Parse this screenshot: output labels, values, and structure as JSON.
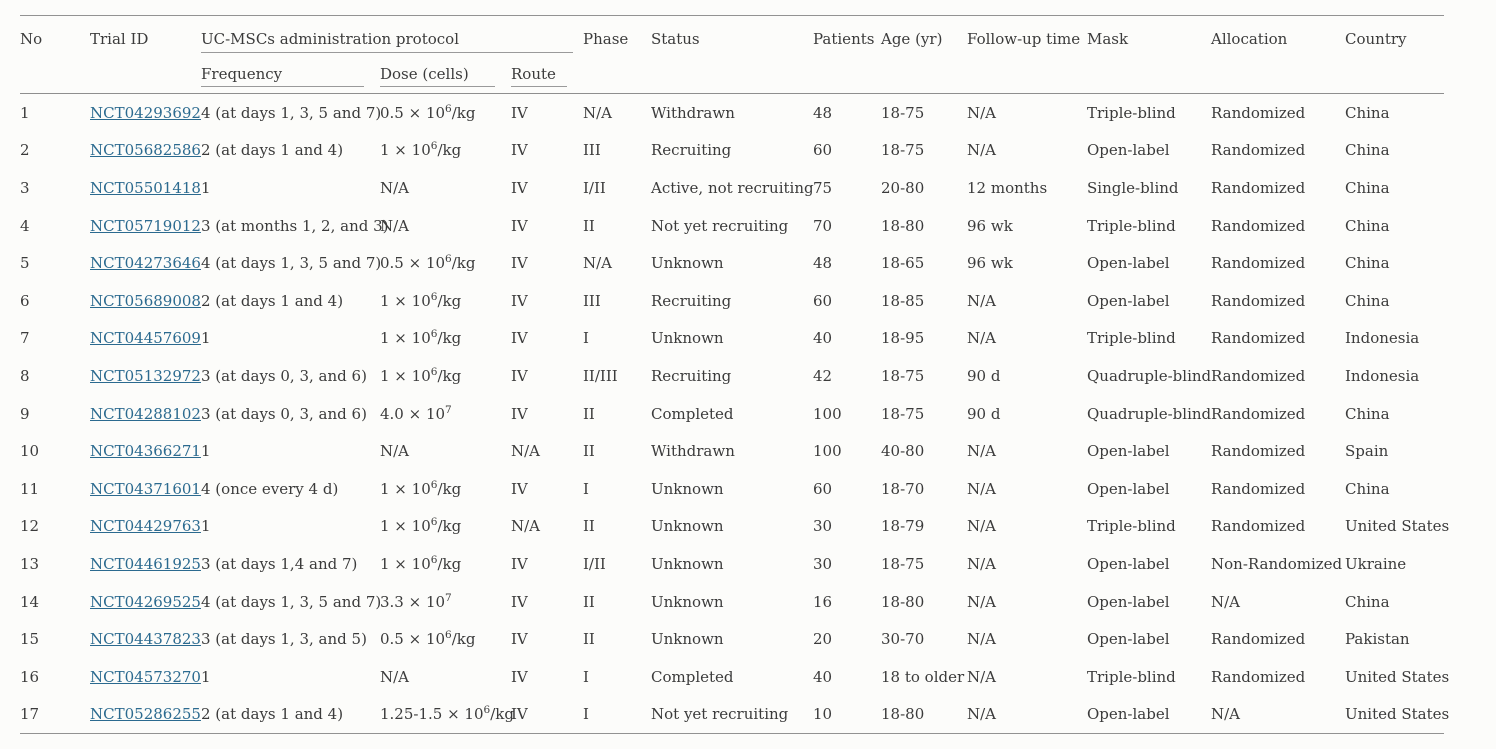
{
  "table": {
    "headers": {
      "no": "No",
      "trial_id": "Trial ID",
      "protocol_group": "UC-MSCs administration protocol",
      "frequency": "Frequency",
      "dose": "Dose (cells)",
      "route": "Route",
      "phase": "Phase",
      "status": "Status",
      "patients": "Patients",
      "age": "Age (yr)",
      "follow_up": "Follow-up time",
      "mask": "Mask",
      "allocation": "Allocation",
      "country": "Country"
    },
    "link_color": "#2b6a8f",
    "rows": [
      {
        "no": "1",
        "trial_id": "NCT04293692",
        "frequency": "4 (at days 1, 3, 5 and 7)",
        "dose": {
          "pre": "0.5 × 10",
          "exp": "6",
          "post": "/kg"
        },
        "route": "IV",
        "phase": "N/A",
        "status": "Withdrawn",
        "patients": "48",
        "age": "18-75",
        "follow_up": "N/A",
        "mask": "Triple-blind",
        "allocation": "Randomized",
        "country": "China"
      },
      {
        "no": "2",
        "trial_id": "NCT05682586",
        "frequency": "2 (at days 1 and 4)",
        "dose": {
          "pre": "1 × 10",
          "exp": "6",
          "post": "/kg"
        },
        "route": "IV",
        "phase": "III",
        "status": "Recruiting",
        "patients": "60",
        "age": "18-75",
        "follow_up": "N/A",
        "mask": "Open-label",
        "allocation": "Randomized",
        "country": "China"
      },
      {
        "no": "3",
        "trial_id": "NCT05501418",
        "frequency": "1",
        "dose": {
          "pre": "N/A",
          "exp": "",
          "post": ""
        },
        "route": "IV",
        "phase": "I/II",
        "status": "Active, not recruiting",
        "patients": "75",
        "age": "20-80",
        "follow_up": "12 months",
        "mask": "Single-blind",
        "allocation": "Randomized",
        "country": "China"
      },
      {
        "no": "4",
        "trial_id": "NCT05719012",
        "frequency": "3 (at months 1, 2, and 3)",
        "dose": {
          "pre": "N/A",
          "exp": "",
          "post": ""
        },
        "route": "IV",
        "phase": "II",
        "status": "Not yet recruiting",
        "patients": "70",
        "age": "18-80",
        "follow_up": "96 wk",
        "mask": "Triple-blind",
        "allocation": "Randomized",
        "country": "China"
      },
      {
        "no": "5",
        "trial_id": "NCT04273646",
        "frequency": "4 (at days 1, 3, 5 and 7)",
        "dose": {
          "pre": "0.5 × 10",
          "exp": "6",
          "post": "/kg"
        },
        "route": "IV",
        "phase": "N/A",
        "status": "Unknown",
        "patients": "48",
        "age": "18-65",
        "follow_up": "96 wk",
        "mask": "Open-label",
        "allocation": "Randomized",
        "country": "China"
      },
      {
        "no": "6",
        "trial_id": "NCT05689008",
        "frequency": "2 (at days 1 and 4)",
        "dose": {
          "pre": "1 × 10",
          "exp": "6",
          "post": "/kg"
        },
        "route": "IV",
        "phase": "III",
        "status": "Recruiting",
        "patients": "60",
        "age": "18-85",
        "follow_up": "N/A",
        "mask": "Open-label",
        "allocation": "Randomized",
        "country": "China"
      },
      {
        "no": "7",
        "trial_id": "NCT04457609",
        "frequency": "1",
        "dose": {
          "pre": "1 × 10",
          "exp": "6",
          "post": "/kg"
        },
        "route": "IV",
        "phase": "I",
        "status": "Unknown",
        "patients": "40",
        "age": "18-95",
        "follow_up": "N/A",
        "mask": "Triple-blind",
        "allocation": "Randomized",
        "country": "Indonesia"
      },
      {
        "no": "8",
        "trial_id": "NCT05132972",
        "frequency": "3 (at days 0, 3, and 6)",
        "dose": {
          "pre": "1 × 10",
          "exp": "6",
          "post": "/kg"
        },
        "route": "IV",
        "phase": "II/III",
        "status": "Recruiting",
        "patients": "42",
        "age": "18-75",
        "follow_up": "90 d",
        "mask": "Quadruple-blind",
        "allocation": "Randomized",
        "country": "Indonesia"
      },
      {
        "no": "9",
        "trial_id": "NCT04288102",
        "frequency": "3 (at days 0, 3, and 6)",
        "dose": {
          "pre": "4.0 × 10",
          "exp": "7",
          "post": ""
        },
        "route": "IV",
        "phase": "II",
        "status": "Completed",
        "patients": "100",
        "age": "18-75",
        "follow_up": "90 d",
        "mask": "Quadruple-blind",
        "allocation": "Randomized",
        "country": "China"
      },
      {
        "no": "10",
        "trial_id": "NCT04366271",
        "frequency": "1",
        "dose": {
          "pre": "N/A",
          "exp": "",
          "post": ""
        },
        "route": "N/A",
        "phase": "II",
        "status": "Withdrawn",
        "patients": "100",
        "age": "40-80",
        "follow_up": "N/A",
        "mask": "Open-label",
        "allocation": "Randomized",
        "country": "Spain"
      },
      {
        "no": "11",
        "trial_id": "NCT04371601",
        "frequency": "4 (once every 4 d)",
        "dose": {
          "pre": "1 × 10",
          "exp": "6",
          "post": "/kg"
        },
        "route": "IV",
        "phase": "I",
        "status": "Unknown",
        "patients": "60",
        "age": "18-70",
        "follow_up": "N/A",
        "mask": "Open-label",
        "allocation": "Randomized",
        "country": "China"
      },
      {
        "no": "12",
        "trial_id": "NCT04429763",
        "frequency": "1",
        "dose": {
          "pre": "1 × 10",
          "exp": "6",
          "post": "/kg"
        },
        "route": "N/A",
        "phase": "II",
        "status": "Unknown",
        "patients": "30",
        "age": "18-79",
        "follow_up": "N/A",
        "mask": "Triple-blind",
        "allocation": "Randomized",
        "country": "United States"
      },
      {
        "no": "13",
        "trial_id": "NCT04461925",
        "frequency": "3 (at days 1,4 and 7)",
        "dose": {
          "pre": "1 × 10",
          "exp": "6",
          "post": "/kg"
        },
        "route": "IV",
        "phase": "I/II",
        "status": "Unknown",
        "patients": "30",
        "age": "18-75",
        "follow_up": "N/A",
        "mask": "Open-label",
        "allocation": "Non-Randomized",
        "country": "Ukraine"
      },
      {
        "no": "14",
        "trial_id": "NCT04269525",
        "frequency": "4 (at days 1, 3, 5 and 7)",
        "dose": {
          "pre": "3.3 × 10",
          "exp": "7",
          "post": ""
        },
        "route": "IV",
        "phase": "II",
        "status": "Unknown",
        "patients": "16",
        "age": "18-80",
        "follow_up": "N/A",
        "mask": "Open-label",
        "allocation": "N/A",
        "country": "China"
      },
      {
        "no": "15",
        "trial_id": "NCT04437823",
        "frequency": "3 (at days 1, 3, and 5)",
        "dose": {
          "pre": "0.5 × 10",
          "exp": "6",
          "post": "/kg"
        },
        "route": "IV",
        "phase": "II",
        "status": "Unknown",
        "patients": "20",
        "age": "30-70",
        "follow_up": "N/A",
        "mask": "Open-label",
        "allocation": "Randomized",
        "country": "Pakistan"
      },
      {
        "no": "16",
        "trial_id": "NCT04573270",
        "frequency": "1",
        "dose": {
          "pre": "N/A",
          "exp": "",
          "post": ""
        },
        "route": "IV",
        "phase": "I",
        "status": "Completed",
        "patients": "40",
        "age": "18 to older",
        "follow_up": "N/A",
        "mask": "Triple-blind",
        "allocation": "Randomized",
        "country": "United States"
      },
      {
        "no": "17",
        "trial_id": "NCT05286255",
        "frequency": "2 (at days 1 and 4)",
        "dose": {
          "pre": "1.25-1.5 × 10",
          "exp": "6",
          "post": "/kg"
        },
        "route": "IV",
        "phase": "I",
        "status": "Not yet recruiting",
        "patients": "10",
        "age": "18-80",
        "follow_up": "N/A",
        "mask": "Open-label",
        "allocation": "N/A",
        "country": "United States"
      }
    ]
  }
}
